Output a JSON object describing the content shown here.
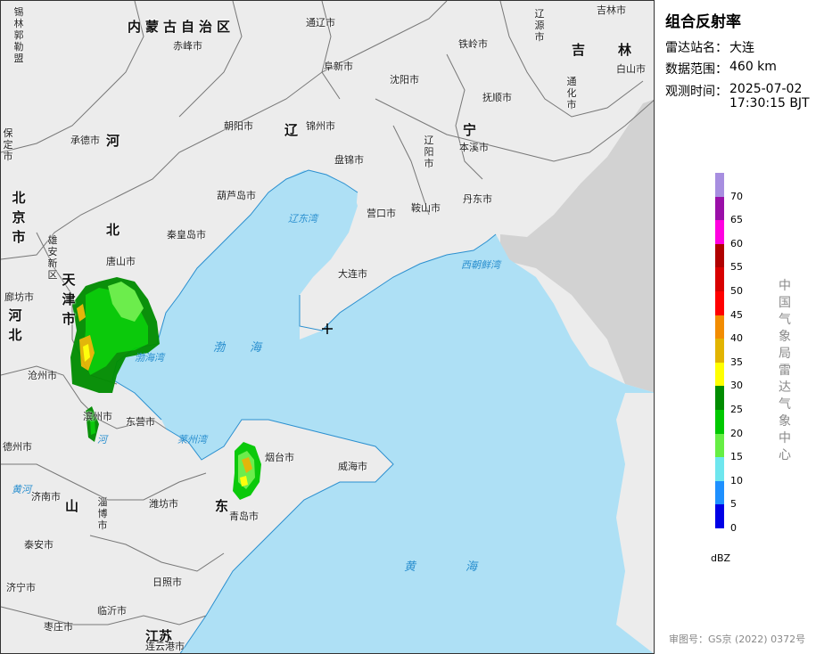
{
  "panel": {
    "title": "组合反射率",
    "station_label": "雷达站名：",
    "station_value": "大连",
    "range_label": "数据范围：",
    "range_value": "460 km",
    "time_label": "观测时间：",
    "time_date": "2025-07-02",
    "time_clock": "17:30:15 BJT",
    "legend_unit": "dBZ",
    "agency": "中国气象局雷达气象中心",
    "review_number": "审图号：GS京 (2022) 0372号"
  },
  "legend": {
    "levels": [
      {
        "label": "70",
        "color": "#a78ee0"
      },
      {
        "label": "65",
        "color": "#9a0fa8"
      },
      {
        "label": "60",
        "color": "#ff00e0"
      },
      {
        "label": "55",
        "color": "#b00000"
      },
      {
        "label": "50",
        "color": "#d80000"
      },
      {
        "label": "45",
        "color": "#ff0000"
      },
      {
        "label": "40",
        "color": "#f28c00"
      },
      {
        "label": "35",
        "color": "#e2b400"
      },
      {
        "label": "30",
        "color": "#ffff00"
      },
      {
        "label": "25",
        "color": "#008c00"
      },
      {
        "label": "20",
        "color": "#00c800"
      },
      {
        "label": "15",
        "color": "#66ee44"
      },
      {
        "label": "10",
        "color": "#6ee6ee"
      },
      {
        "label": "5",
        "color": "#1e90ff"
      },
      {
        "label": "0",
        "color": "#0000e6"
      }
    ]
  },
  "map": {
    "colors": {
      "sea": "#aee0f5",
      "land": "#ececec",
      "border": "#777777",
      "outside": "#d6d6d6"
    },
    "provinces": [
      {
        "text": "内蒙古自治区",
        "orient": "h"
      },
      {
        "text": "锡林郭勒盟",
        "orient": "v"
      },
      {
        "text": "河北",
        "orient": "h"
      },
      {
        "text": "北京市",
        "orient": "v"
      },
      {
        "text": "天津市",
        "orient": "v"
      },
      {
        "text": "河北",
        "orient": "v"
      },
      {
        "text": "辽宁",
        "orient": "h"
      },
      {
        "text": "吉林",
        "orient": "h"
      },
      {
        "text": "山东",
        "orient": "h"
      },
      {
        "text": "江苏",
        "orient": "h"
      }
    ],
    "cities": [
      "赤峰市",
      "通辽市",
      "阜新市",
      "沈阳市",
      "铁岭市",
      "抚顺市",
      "辽源市",
      "吉林市",
      "白山市",
      "通化市",
      "朝阳市",
      "锦州市",
      "盘锦市",
      "辽阳市",
      "本溪市",
      "承德市",
      "葫芦岛市",
      "营口市",
      "鞍山市",
      "丹东市",
      "秦皇岛市",
      "唐山市",
      "廊坊市",
      "大连市",
      "沧州市",
      "滨州市",
      "东营市",
      "德州市",
      "烟台市",
      "威海市",
      "济南市",
      "淄博市",
      "潍坊市",
      "青岛市",
      "泰安市",
      "济宁市",
      "日照市",
      "临沂市",
      "枣庄市",
      "连云港市",
      "保定市",
      "雄安新区"
    ],
    "seas": [
      "辽东湾",
      "渤海",
      "渤海湾",
      "莱州湾",
      "黄海",
      "西朝鲜湾"
    ],
    "rivers": [
      "河",
      "黄河",
      "河"
    ]
  }
}
